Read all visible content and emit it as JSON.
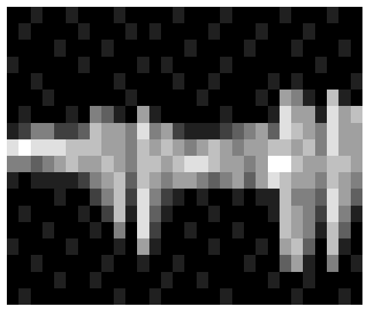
{
  "chart_data": {
    "type": "heatmap",
    "color": "gray",
    "tick_labels": false,
    "cells": [
      [
        1,
        1,
        2,
        1,
        1,
        2,
        1,
        1,
        1,
        2,
        1,
        1,
        1,
        1,
        2,
        1,
        1,
        1,
        2,
        1,
        1,
        1,
        1,
        2,
        1,
        1,
        1,
        2,
        1,
        1
      ],
      [
        1,
        2,
        1,
        1,
        1,
        1,
        2,
        1,
        1,
        1,
        2,
        1,
        2,
        1,
        1,
        1,
        1,
        2,
        1,
        1,
        1,
        2,
        1,
        1,
        1,
        2,
        1,
        1,
        1,
        1
      ],
      [
        1,
        1,
        1,
        1,
        2,
        1,
        1,
        1,
        2,
        1,
        1,
        1,
        1,
        1,
        1,
        2,
        1,
        1,
        1,
        1,
        2,
        1,
        1,
        1,
        2,
        1,
        1,
        1,
        2,
        1
      ],
      [
        2,
        1,
        1,
        1,
        1,
        1,
        2,
        1,
        1,
        1,
        1,
        2,
        1,
        2,
        1,
        1,
        1,
        1,
        2,
        1,
        1,
        1,
        1,
        1,
        1,
        1,
        2,
        1,
        1,
        1
      ],
      [
        1,
        1,
        2,
        1,
        1,
        1,
        1,
        1,
        1,
        2,
        1,
        1,
        1,
        1,
        2,
        1,
        1,
        2,
        1,
        1,
        1,
        1,
        2,
        1,
        2,
        1,
        1,
        1,
        1,
        2
      ],
      [
        1,
        1,
        1,
        2,
        1,
        1,
        1,
        1,
        1,
        1,
        2,
        1,
        1,
        1,
        1,
        1,
        2,
        1,
        1,
        1,
        1,
        2,
        1,
        6,
        5,
        2,
        1,
        7,
        2,
        1
      ],
      [
        1,
        2,
        1,
        1,
        1,
        2,
        1,
        5,
        4,
        2,
        1,
        6,
        2,
        1,
        1,
        1,
        1,
        1,
        2,
        1,
        1,
        1,
        2,
        8,
        6,
        6,
        2,
        8,
        6,
        7
      ],
      [
        2,
        3,
        5,
        5,
        3,
        3,
        4,
        7,
        6,
        6,
        5,
        8,
        5,
        6,
        3,
        2,
        2,
        2,
        3,
        4,
        5,
        6,
        4,
        8,
        7,
        6,
        5,
        8,
        6,
        6
      ],
      [
        8,
        9,
        8,
        8,
        8,
        7,
        7,
        7,
        6,
        6,
        5,
        7,
        6,
        7,
        6,
        5,
        6,
        7,
        6,
        5,
        6,
        6,
        7,
        7,
        6,
        7,
        5,
        8,
        6,
        6
      ],
      [
        5,
        5,
        4,
        5,
        6,
        7,
        6,
        6,
        7,
        6,
        5,
        7,
        7,
        6,
        7,
        8,
        8,
        7,
        6,
        6,
        5,
        6,
        9,
        9,
        7,
        6,
        6,
        7,
        7,
        6
      ],
      [
        2,
        1,
        2,
        2,
        2,
        2,
        3,
        5,
        6,
        7,
        4,
        7,
        6,
        5,
        6,
        6,
        5,
        4,
        5,
        6,
        4,
        6,
        8,
        7,
        6,
        6,
        5,
        7,
        6,
        5
      ],
      [
        1,
        1,
        1,
        1,
        2,
        1,
        1,
        3,
        5,
        7,
        3,
        8,
        5,
        3,
        2,
        1,
        2,
        1,
        1,
        2,
        1,
        2,
        2,
        7,
        5,
        5,
        4,
        8,
        6,
        4
      ],
      [
        1,
        2,
        1,
        1,
        1,
        1,
        2,
        1,
        3,
        7,
        2,
        8,
        4,
        2,
        1,
        1,
        1,
        2,
        1,
        1,
        1,
        1,
        2,
        7,
        6,
        5,
        3,
        8,
        5,
        2
      ],
      [
        1,
        1,
        1,
        2,
        1,
        1,
        1,
        2,
        1,
        5,
        1,
        8,
        3,
        1,
        1,
        2,
        1,
        1,
        1,
        2,
        1,
        1,
        1,
        7,
        6,
        5,
        2,
        7,
        4,
        1
      ],
      [
        2,
        1,
        1,
        1,
        1,
        2,
        1,
        1,
        1,
        2,
        1,
        6,
        2,
        1,
        1,
        1,
        1,
        2,
        1,
        1,
        1,
        2,
        1,
        6,
        7,
        4,
        1,
        7,
        2,
        1
      ],
      [
        1,
        1,
        2,
        1,
        1,
        1,
        1,
        1,
        2,
        1,
        1,
        2,
        1,
        1,
        2,
        1,
        1,
        1,
        1,
        1,
        2,
        1,
        1,
        4,
        6,
        2,
        1,
        5,
        1,
        2
      ],
      [
        1,
        1,
        1,
        1,
        2,
        1,
        1,
        2,
        1,
        1,
        1,
        1,
        1,
        2,
        1,
        1,
        2,
        1,
        1,
        1,
        1,
        1,
        2,
        1,
        1,
        2,
        1,
        1,
        1,
        1
      ],
      [
        1,
        2,
        1,
        1,
        1,
        1,
        1,
        1,
        1,
        2,
        1,
        1,
        2,
        1,
        1,
        1,
        1,
        1,
        2,
        1,
        1,
        1,
        1,
        1,
        2,
        1,
        1,
        1,
        2,
        1
      ]
    ]
  }
}
